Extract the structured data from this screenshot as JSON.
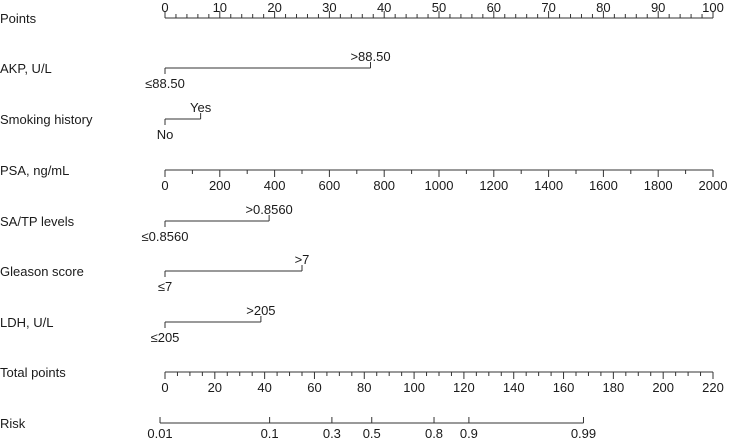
{
  "chart_data": {
    "type": "nomogram",
    "rows": [
      {
        "label": "Points",
        "kind": "axis",
        "min": 0,
        "max": 100,
        "major": [
          0,
          10,
          20,
          30,
          40,
          50,
          60,
          70,
          80,
          90,
          100
        ],
        "minor_step": 2,
        "labels_above": true
      },
      {
        "label": "AKP, U/L",
        "kind": "binary",
        "low": {
          "label": "≤88.50",
          "points": 0
        },
        "high": {
          "label": ">88.50",
          "points": 37.5
        }
      },
      {
        "label": "Smoking history",
        "kind": "binary",
        "low": {
          "label": "No",
          "points": 0
        },
        "high": {
          "label": "Yes",
          "points": 6.5
        }
      },
      {
        "label": "PSA, ng/mL",
        "kind": "axis",
        "min": 0,
        "max": 2000,
        "points_range": [
          0,
          100
        ],
        "major": [
          0,
          200,
          400,
          600,
          800,
          1000,
          1200,
          1400,
          1600,
          1800,
          2000
        ],
        "minor_step": 100,
        "labels_above": false
      },
      {
        "label": "SA/TP levels",
        "kind": "binary",
        "low": {
          "label": "≤0.8560",
          "points": 0
        },
        "high": {
          "label": ">0.8560",
          "points": 19
        }
      },
      {
        "label": "Gleason score",
        "kind": "binary",
        "low": {
          "label": "≤7",
          "points": 0
        },
        "high": {
          "label": ">7",
          "points": 25
        }
      },
      {
        "label": "LDH, U/L",
        "kind": "binary",
        "low": {
          "label": "≤205",
          "points": 0
        },
        "high": {
          "label": ">205",
          "points": 17.5
        }
      },
      {
        "label": "Total points",
        "kind": "axis",
        "min": 0,
        "max": 220,
        "points_range": [
          0,
          100
        ],
        "major": [
          0,
          20,
          40,
          60,
          80,
          100,
          120,
          140,
          160,
          180,
          200,
          220
        ],
        "minor_step": 5,
        "labels_above": false
      },
      {
        "label": "Risk",
        "kind": "risk",
        "ticks": [
          {
            "label": "0.01",
            "total_points": -2
          },
          {
            "label": "0.1",
            "total_points": 42
          },
          {
            "label": "0.3",
            "total_points": 67
          },
          {
            "label": "0.5",
            "total_points": 83
          },
          {
            "label": "0.8",
            "total_points": 108
          },
          {
            "label": "0.9",
            "total_points": 122
          },
          {
            "label": "0.99",
            "total_points": 168
          }
        ]
      }
    ]
  }
}
